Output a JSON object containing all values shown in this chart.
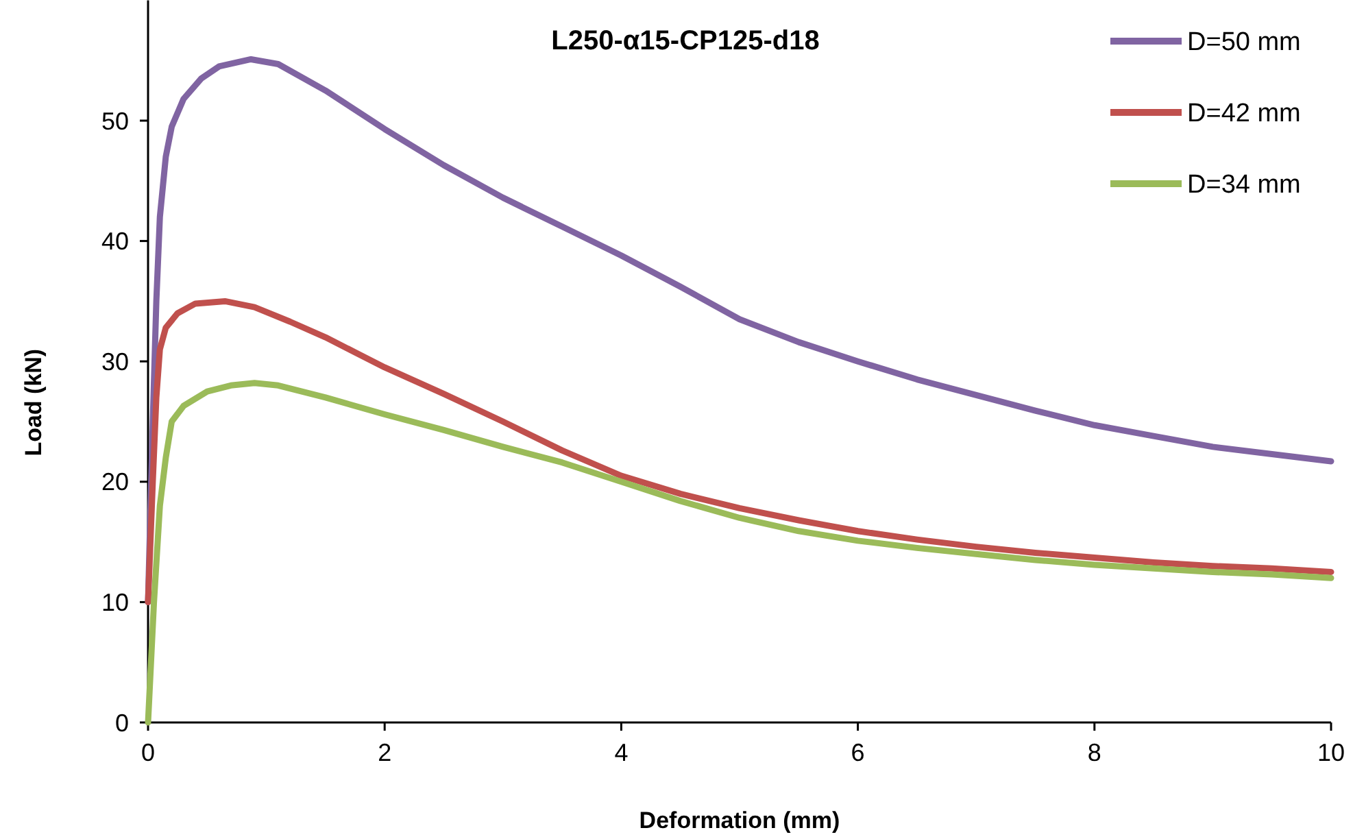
{
  "chart_data": {
    "type": "line",
    "title": "L250-α15-CP125-d18",
    "xlabel": "Deformation (mm)",
    "ylabel": "Load (kN)",
    "xlim": [
      0,
      10
    ],
    "xticks": [
      0,
      2,
      4,
      6,
      8,
      10
    ],
    "ylim": [
      0,
      60
    ],
    "yticks": [
      0,
      10,
      20,
      30,
      40,
      50
    ],
    "grid": false,
    "legend": "top right",
    "marker": "none",
    "line_style": "solid",
    "series": [
      {
        "name": "D=50 mm",
        "color": "#8064a2",
        "x": [
          0,
          0.04,
          0.07,
          0.1,
          0.15,
          0.2,
          0.3,
          0.45,
          0.6,
          0.87,
          1.1,
          1.5,
          2,
          2.5,
          3,
          3.5,
          4,
          4.5,
          5,
          5.5,
          6,
          6.5,
          7,
          7.5,
          8,
          8.5,
          9,
          9.5,
          10
        ],
        "values": [
          10,
          25,
          35,
          42,
          47,
          49.5,
          51.8,
          53.5,
          54.5,
          55.1,
          54.7,
          52.5,
          49.3,
          46.3,
          43.6,
          41.2,
          38.8,
          36.2,
          33.5,
          31.6,
          30,
          28.5,
          27.2,
          25.9,
          24.7,
          23.8,
          22.9,
          22.3,
          21.7
        ]
      },
      {
        "name": "D=42 mm",
        "color": "#c0504d",
        "x": [
          0,
          0.04,
          0.07,
          0.1,
          0.15,
          0.25,
          0.4,
          0.65,
          0.9,
          1.2,
          1.5,
          2,
          2.5,
          3,
          3.5,
          4,
          4.5,
          5,
          5.5,
          6,
          6.5,
          7,
          7.5,
          8,
          8.5,
          9,
          9.5,
          10
        ],
        "values": [
          10,
          20,
          27,
          31,
          32.8,
          34,
          34.8,
          35,
          34.5,
          33.3,
          32,
          29.5,
          27.3,
          25,
          22.6,
          20.5,
          19,
          17.8,
          16.8,
          15.9,
          15.2,
          14.6,
          14.1,
          13.7,
          13.3,
          13,
          12.8,
          12.5
        ]
      },
      {
        "name": "D=34 mm",
        "color": "#9bbb59",
        "x": [
          0,
          0.05,
          0.1,
          0.15,
          0.2,
          0.3,
          0.5,
          0.7,
          0.9,
          1.1,
          1.5,
          2,
          2.5,
          3,
          3.5,
          4,
          4.5,
          5,
          5.5,
          6,
          6.5,
          7,
          7.5,
          8,
          8.5,
          9,
          9.5,
          10
        ],
        "values": [
          0,
          10,
          18,
          22,
          25,
          26.3,
          27.5,
          28,
          28.2,
          28,
          27,
          25.6,
          24.3,
          22.9,
          21.6,
          20,
          18.4,
          17,
          15.9,
          15.1,
          14.5,
          14,
          13.5,
          13.1,
          12.8,
          12.5,
          12.3,
          12
        ]
      }
    ]
  }
}
